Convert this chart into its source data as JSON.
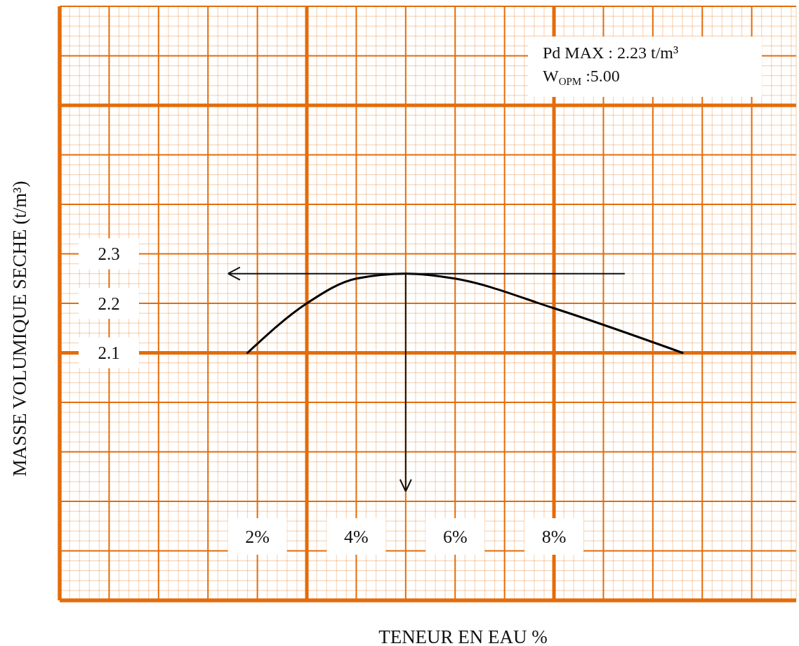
{
  "chart_data": {
    "type": "line",
    "xlabel": "TENEUR EN EAU %",
    "ylabel": "MASSE VOLUMIQUE SECHE (t/m³)",
    "annotations": [
      "Pd MAX : 2.23 t/m³",
      "W$_{OPM}$ :5.00"
    ],
    "x": [
      1.8,
      3,
      4,
      5,
      6,
      8,
      10.6
    ],
    "values": [
      2.1,
      2.2,
      2.25,
      2.26,
      2.25,
      2.19,
      2.1
    ],
    "color": "#000000",
    "marker": "none",
    "grid": true,
    "xlim": [
      -2,
      12.9
    ],
    "ylim": [
      1.6,
      2.8
    ],
    "xticks": [
      {
        "value": -2,
        "label": null
      },
      {
        "value": -1.8,
        "label": null
      },
      {
        "value": -1.6,
        "label": null
      },
      {
        "value": -1.4,
        "label": null
      },
      {
        "value": -1.2,
        "label": null
      },
      {
        "value": -1,
        "label": null
      },
      {
        "value": -0.8,
        "label": null
      },
      {
        "value": -0.6,
        "label": null
      },
      {
        "value": -0.4,
        "label": null
      },
      {
        "value": -0.2,
        "label": null
      },
      {
        "value": 0,
        "label": null
      },
      {
        "value": 0.2,
        "label": null
      },
      {
        "value": 0.4,
        "label": null
      },
      {
        "value": 0.6,
        "label": null
      },
      {
        "value": 0.8,
        "label": null
      },
      {
        "value": 1,
        "label": null
      },
      {
        "value": 1.2,
        "label": null
      },
      {
        "value": 1.4,
        "label": null
      },
      {
        "value": 1.6,
        "label": null
      },
      {
        "value": 1.8,
        "label": null
      },
      {
        "value": 2,
        "label": "2%"
      },
      {
        "value": 2.2,
        "label": null
      },
      {
        "value": 2.4,
        "label": null
      },
      {
        "value": 2.6,
        "label": null
      },
      {
        "value": 2.8,
        "label": null
      },
      {
        "value": 3,
        "label": null
      },
      {
        "value": 3.2,
        "label": null
      },
      {
        "value": 3.4,
        "label": null
      },
      {
        "value": 3.6,
        "label": null
      },
      {
        "value": 3.8,
        "label": null
      },
      {
        "value": 4,
        "label": "4%"
      },
      {
        "value": 4.2,
        "label": null
      },
      {
        "value": 4.4,
        "label": null
      },
      {
        "value": 4.6,
        "label": null
      },
      {
        "value": 4.8,
        "label": null
      },
      {
        "value": 5,
        "label": null
      },
      {
        "value": 5.2,
        "label": null
      },
      {
        "value": 5.4,
        "label": null
      },
      {
        "value": 5.6,
        "label": null
      },
      {
        "value": 5.8,
        "label": null
      },
      {
        "value": 6,
        "label": "6%"
      },
      {
        "value": 6.2,
        "label": null
      },
      {
        "value": 6.4,
        "label": null
      },
      {
        "value": 6.6,
        "label": null
      },
      {
        "value": 6.8,
        "label": null
      },
      {
        "value": 7,
        "label": null
      },
      {
        "value": 7.2,
        "label": null
      },
      {
        "value": 7.4,
        "label": null
      },
      {
        "value": 7.6,
        "label": null
      },
      {
        "value": 7.8,
        "label": null
      },
      {
        "value": 8,
        "label": "8%"
      },
      {
        "value": 8.2,
        "label": null
      },
      {
        "value": 8.4,
        "label": null
      },
      {
        "value": 8.6,
        "label": null
      },
      {
        "value": 8.8,
        "label": null
      },
      {
        "value": 9,
        "label": null
      },
      {
        "value": 9.2,
        "label": null
      },
      {
        "value": 9.4,
        "label": null
      },
      {
        "value": 9.6,
        "label": null
      },
      {
        "value": 9.8,
        "label": null
      },
      {
        "value": 10,
        "label": null
      },
      {
        "value": 10.2,
        "label": null
      },
      {
        "value": 10.4,
        "label": null
      },
      {
        "value": 10.6,
        "label": null
      },
      {
        "value": 10.8,
        "label": null
      },
      {
        "value": 11,
        "label": null
      },
      {
        "value": 11.2,
        "label": null
      },
      {
        "value": 11.4,
        "label": null
      },
      {
        "value": 11.6,
        "label": null
      },
      {
        "value": 11.8,
        "label": null
      },
      {
        "value": 12,
        "label": null
      },
      {
        "value": 12.2,
        "label": null
      },
      {
        "value": 12.4,
        "label": null
      },
      {
        "value": 12.6,
        "label": null
      },
      {
        "value": 12.8,
        "label": null
      }
    ],
    "yticks": [
      {
        "value": 1.6,
        "label": null
      },
      {
        "value": 1.62,
        "label": null
      },
      {
        "value": 1.64,
        "label": null
      },
      {
        "value": 1.66,
        "label": null
      },
      {
        "value": 1.68,
        "label": null
      },
      {
        "value": 1.7,
        "label": null
      },
      {
        "value": 1.72,
        "label": null
      },
      {
        "value": 1.74,
        "label": null
      },
      {
        "value": 1.76,
        "label": null
      },
      {
        "value": 1.78,
        "label": null
      },
      {
        "value": 1.8,
        "label": null
      },
      {
        "value": 1.82,
        "label": null
      },
      {
        "value": 1.84,
        "label": null
      },
      {
        "value": 1.86,
        "label": null
      },
      {
        "value": 1.88,
        "label": null
      },
      {
        "value": 1.9,
        "label": null
      },
      {
        "value": 1.92,
        "label": null
      },
      {
        "value": 1.94,
        "label": null
      },
      {
        "value": 1.96,
        "label": null
      },
      {
        "value": 1.98,
        "label": null
      },
      {
        "value": 2,
        "label": null
      },
      {
        "value": 2.02,
        "label": null
      },
      {
        "value": 2.04,
        "label": null
      },
      {
        "value": 2.06,
        "label": null
      },
      {
        "value": 2.08,
        "label": null
      },
      2.1,
      {
        "value": 2.12,
        "label": null
      },
      {
        "value": 2.14,
        "label": null
      },
      {
        "value": 2.16,
        "label": null
      },
      {
        "value": 2.18,
        "label": null
      },
      2.2,
      {
        "value": 2.22,
        "label": null
      },
      {
        "value": 2.24,
        "label": null
      },
      {
        "value": 2.26,
        "label": null
      },
      {
        "value": 2.28,
        "label": null
      },
      2.3,
      {
        "value": 2.32,
        "label": null
      },
      {
        "value": 2.34,
        "label": null
      },
      {
        "value": 2.36,
        "label": null
      },
      {
        "value": 2.38,
        "label": null
      },
      {
        "value": 2.4,
        "label": null
      },
      {
        "value": 2.42,
        "label": null
      },
      {
        "value": 2.44,
        "label": null
      },
      {
        "value": 2.46,
        "label": null
      },
      {
        "value": 2.48,
        "label": null
      },
      {
        "value": 2.5,
        "label": null
      },
      {
        "value": 2.52,
        "label": null
      },
      {
        "value": 2.54,
        "label": null
      },
      {
        "value": 2.56,
        "label": null
      },
      {
        "value": 2.58,
        "label": null
      },
      {
        "value": 2.6,
        "label": null
      },
      {
        "value": 2.62,
        "label": null
      },
      {
        "value": 2.64,
        "label": null
      },
      {
        "value": 2.66,
        "label": null
      },
      {
        "value": 2.68,
        "label": null
      },
      {
        "value": 2.7,
        "label": null
      },
      {
        "value": 2.72,
        "label": null
      },
      {
        "value": 2.74,
        "label": null
      },
      {
        "value": 2.76,
        "label": null
      },
      {
        "value": 2.78,
        "label": null
      },
      {
        "value": 2.8,
        "label": null
      }
    ]
  }
}
